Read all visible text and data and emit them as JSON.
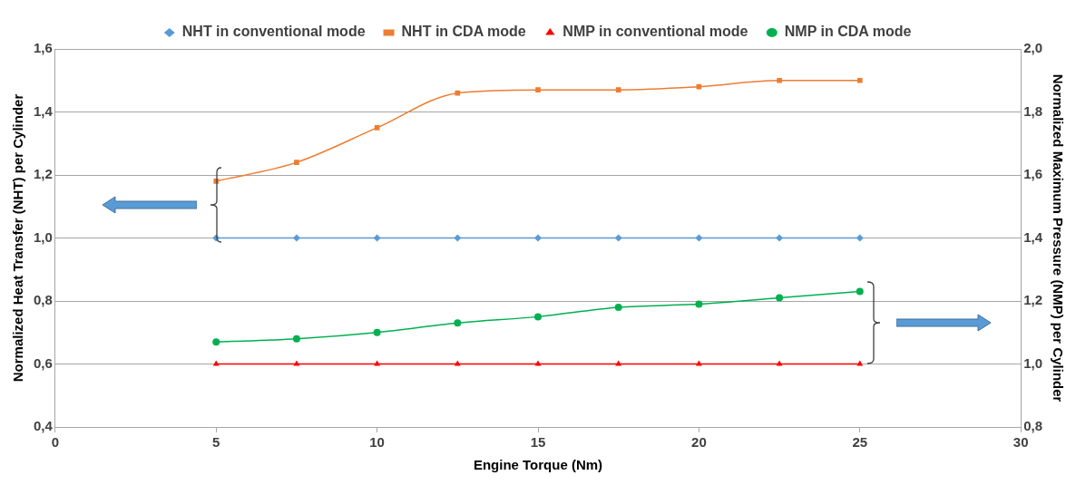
{
  "chart_data": {
    "type": "line",
    "xlabel": "Engine Torque (Nm)",
    "ylabel": "Normalized Heat Transfer (NHT) per Cylinder",
    "y2label": "Normalized Maximum Pressure (NMP) per Cylinder",
    "x": [
      5,
      7.5,
      10,
      12.5,
      15,
      17.5,
      20,
      22.5,
      25
    ],
    "xlim": [
      0,
      30
    ],
    "xticks": [
      0,
      5,
      10,
      15,
      20,
      25,
      30
    ],
    "ylim": [
      0.4,
      1.6
    ],
    "yticks": [
      {
        "value": 0.4,
        "label": "0,4"
      },
      {
        "value": 0.6,
        "label": "0,6"
      },
      {
        "value": 0.8,
        "label": "0,8"
      },
      {
        "value": 1.0,
        "label": "1,0"
      },
      {
        "value": 1.2,
        "label": "1,2"
      },
      {
        "value": 1.4,
        "label": "1,4"
      },
      {
        "value": 1.6,
        "label": "1,6"
      }
    ],
    "y2lim": [
      0.8,
      2.0
    ],
    "y2ticks": [
      {
        "value": 0.8,
        "label": "0,8"
      },
      {
        "value": 1.0,
        "label": "1,0"
      },
      {
        "value": 1.2,
        "label": "1,2"
      },
      {
        "value": 1.4,
        "label": "1,4"
      },
      {
        "value": 1.6,
        "label": "1,6"
      },
      {
        "value": 1.8,
        "label": "1,8"
      },
      {
        "value": 2.0,
        "label": "2,0"
      }
    ],
    "grid": "y",
    "legend": "top",
    "series": [
      {
        "name": "NHT in conventional mode",
        "color": "#5b9bd5",
        "marker": "diamond",
        "values": [
          1,
          1,
          1,
          1,
          1,
          1,
          1,
          1,
          1
        ]
      },
      {
        "name": "NHT in CDA mode",
        "color": "#ed7d31",
        "marker": "square",
        "values": [
          1.18,
          1.24,
          1.35,
          1.46,
          1.47,
          1.47,
          1.48,
          1.5,
          1.5
        ]
      },
      {
        "name": "NMP in conventional mode",
        "color": "#ff0000",
        "marker": "triangle",
        "axis": "y2",
        "values": [
          1,
          1,
          1,
          1,
          1,
          1,
          1,
          1,
          1
        ]
      },
      {
        "name": "NMP in CDA mode",
        "color": "#00b050",
        "marker": "circle",
        "axis": "y2",
        "values": [
          1.07,
          1.08,
          1.1,
          1.13,
          1.15,
          1.18,
          1.19,
          1.21,
          1.23
        ]
      }
    ]
  }
}
